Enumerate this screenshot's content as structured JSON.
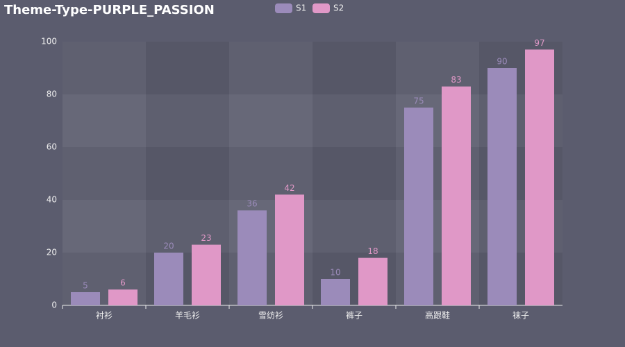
{
  "chart_data": {
    "type": "bar",
    "title": "Theme-Type-PURPLE_PASSION",
    "categories": [
      "衬衫",
      "羊毛衫",
      "雪纺衫",
      "裤子",
      "高跟鞋",
      "袜子"
    ],
    "series": [
      {
        "name": "S1",
        "color": "#9b8bba",
        "values": [
          5,
          20,
          36,
          10,
          75,
          90
        ]
      },
      {
        "name": "S2",
        "color": "#e098c7",
        "values": [
          6,
          23,
          42,
          18,
          83,
          97
        ]
      }
    ],
    "ylim": [
      0,
      100
    ],
    "yticks": [
      0,
      20,
      40,
      60,
      80,
      100
    ],
    "legend": "top",
    "grid": true
  }
}
